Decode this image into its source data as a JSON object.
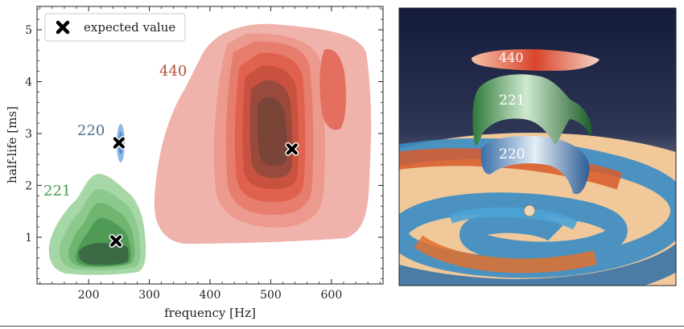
{
  "chart_data": {
    "type": "contour",
    "xlabel": "frequency [Hz]",
    "ylabel": "half-life [ms]",
    "xlim": [
      115,
      685
    ],
    "ylim": [
      0.1,
      5.45
    ],
    "xticks": [
      200,
      300,
      400,
      500,
      600
    ],
    "yticks": [
      1,
      2,
      3,
      4,
      5
    ],
    "legend": {
      "label": "expected value",
      "position": "top-left"
    },
    "modes": [
      {
        "name": "440",
        "color": "#c0392b",
        "expected": {
          "frequency": 535,
          "half_life": 2.7
        }
      },
      {
        "name": "220",
        "color": "#4f6f8f",
        "expected": {
          "frequency": 250,
          "half_life": 2.82
        }
      },
      {
        "name": "221",
        "color": "#4a9a4a",
        "expected": {
          "frequency": 245,
          "half_life": 0.93
        }
      }
    ]
  },
  "render_labels": {
    "top": "440",
    "middle": "221",
    "bottom": "220"
  },
  "colors": {
    "red_fill": "#e8908a",
    "blue_fill": "#6a9fd8",
    "green_fill": "#6fbf6f"
  }
}
